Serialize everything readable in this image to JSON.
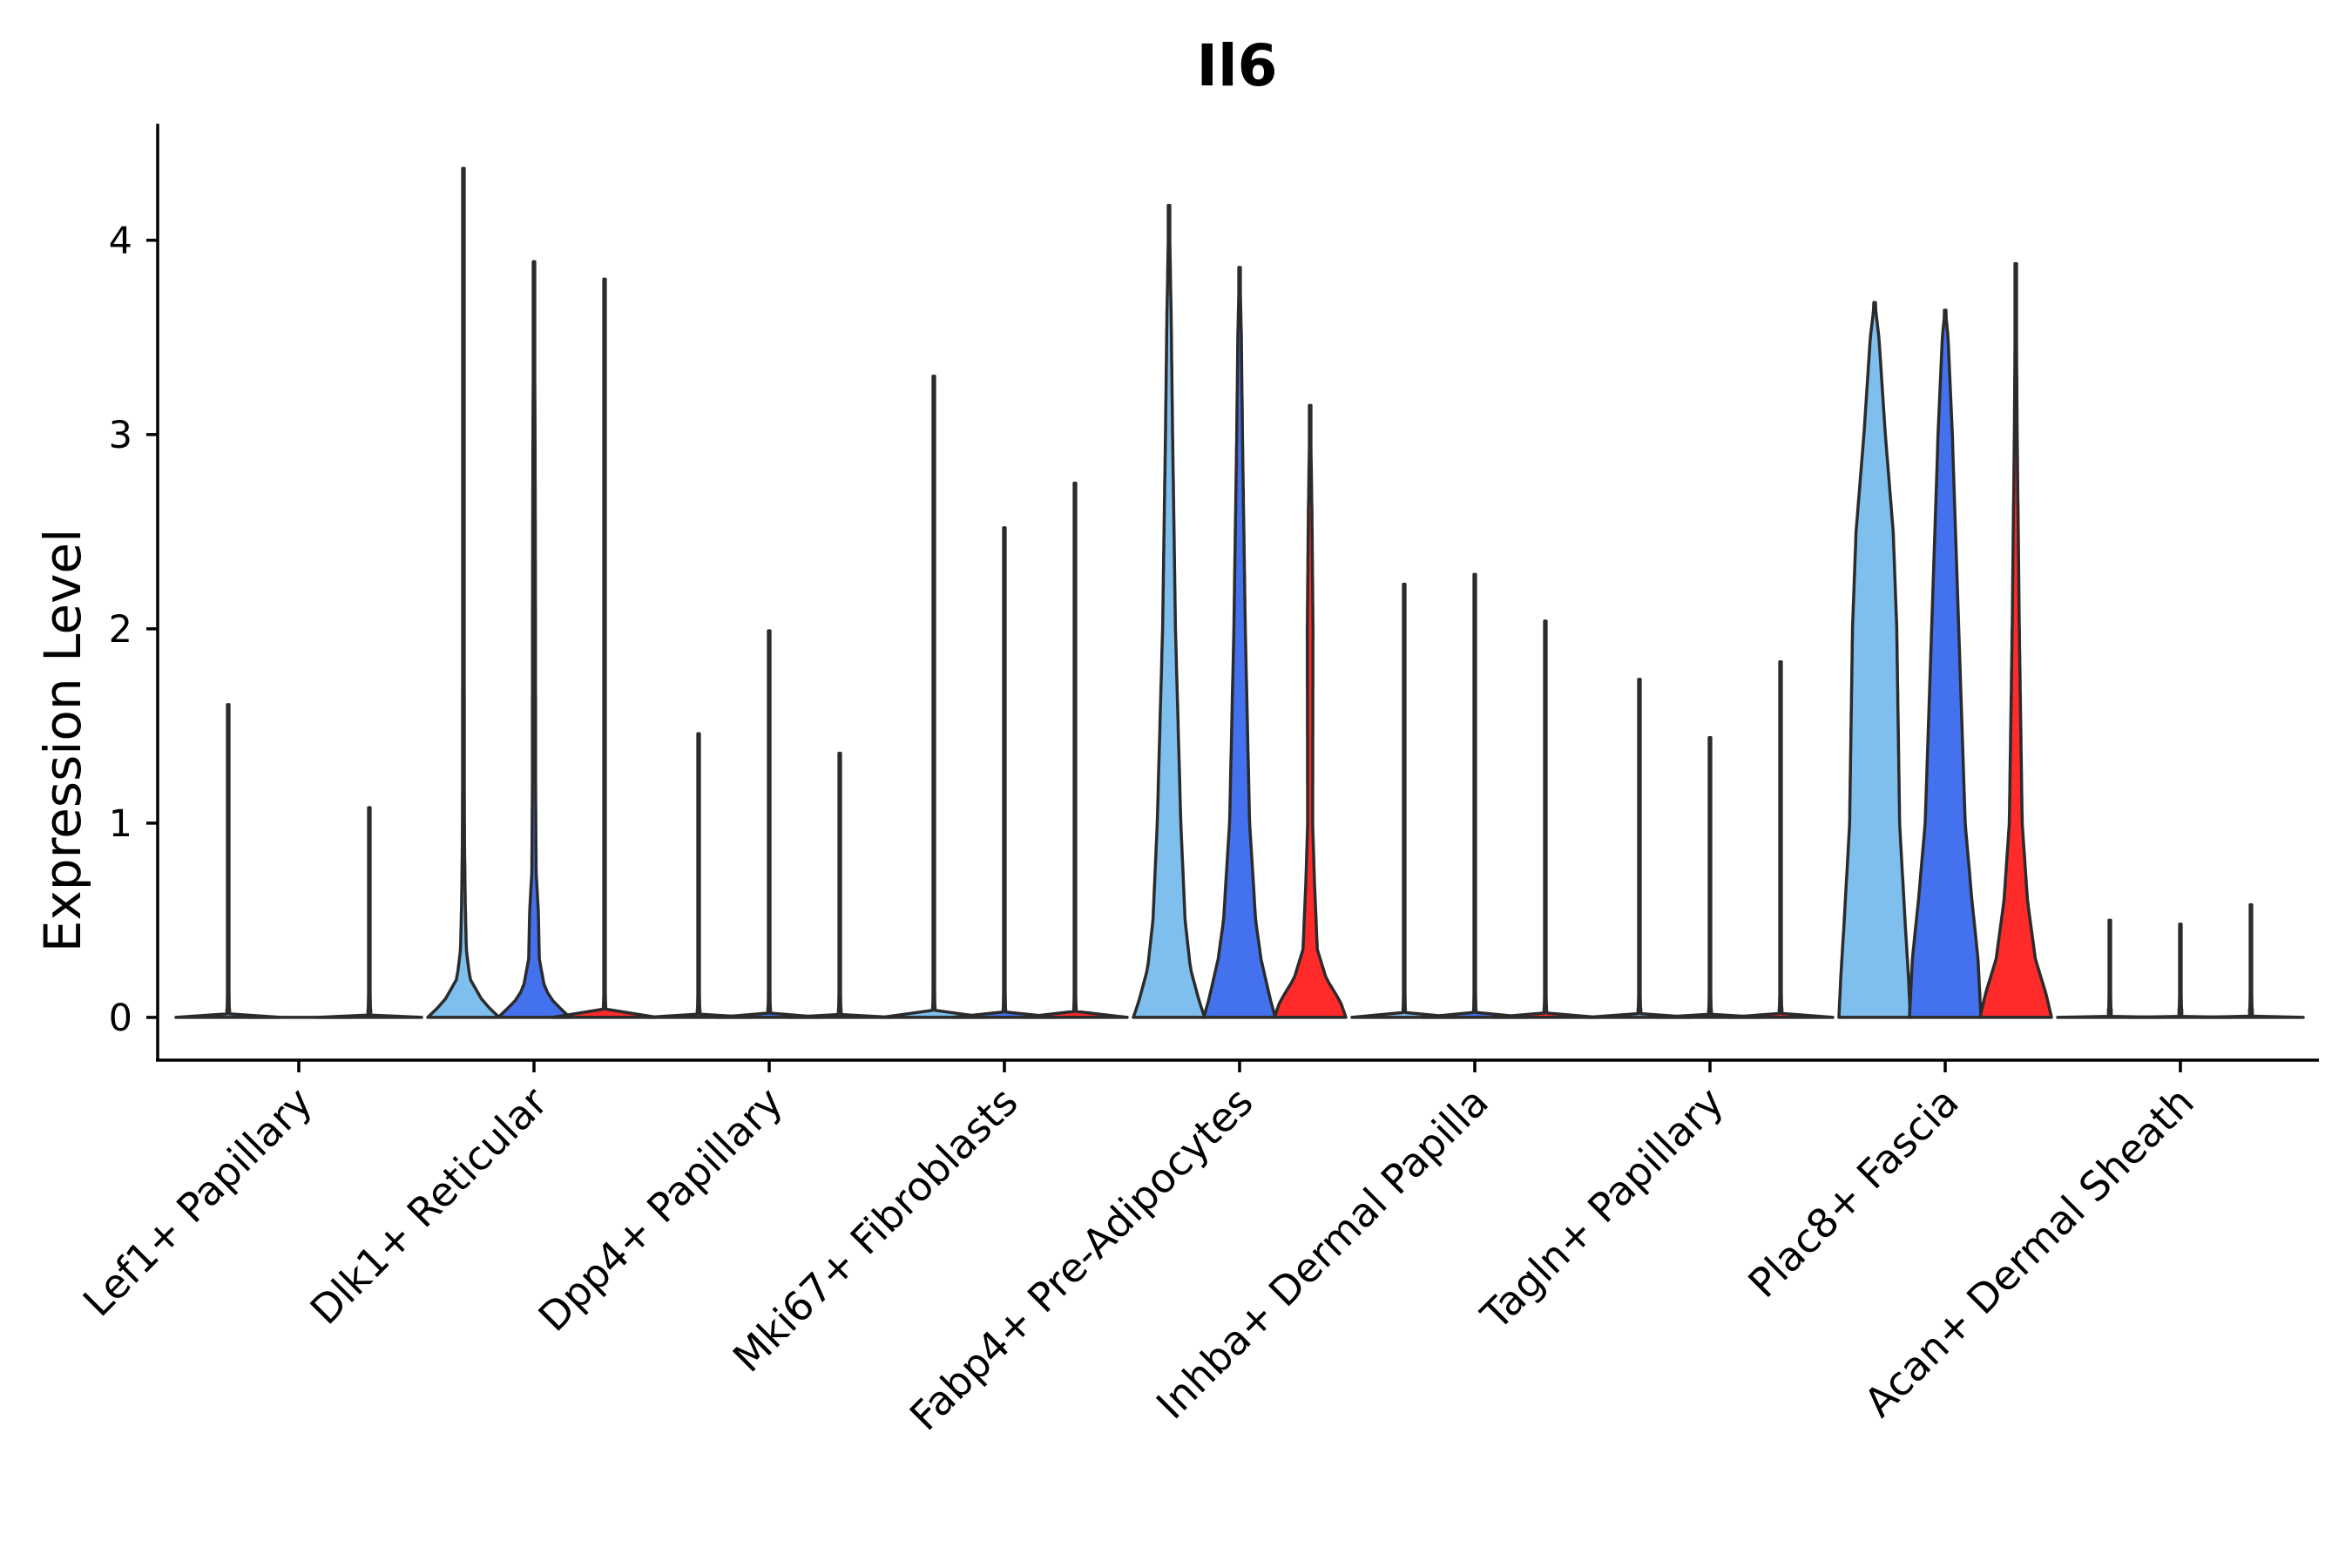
{
  "chart_data": {
    "type": "violin",
    "title": "Il6",
    "xlabel": "",
    "ylabel": "Expression Level",
    "ylim": [
      -0.22,
      4.6
    ],
    "yticks": [
      0,
      1,
      2,
      3,
      4
    ],
    "categories": [
      "Lef1+ Papillary",
      "Dlk1+ Reticular",
      "Dpp4+ Papillary",
      "Mki67+ Fibroblasts",
      "Fabp4+ Pre-Adipocytes",
      "Inhba+ Dermal Papilla",
      "Tagln+ Papillary",
      "Plac8+ Fascia",
      "Acan+ Dermal Sheath"
    ],
    "series_colors": [
      "#7fbfee",
      "#4471ee",
      "#ff2a2a"
    ],
    "violins": [
      {
        "category": 0,
        "series": 0,
        "max": 1.61,
        "fill": false,
        "shape": "flat"
      },
      {
        "category": 0,
        "series": 1,
        "max": 0.0,
        "fill": false,
        "shape": "flat"
      },
      {
        "category": 0,
        "series": 2,
        "max": 1.08,
        "fill": false,
        "shape": "flat"
      },
      {
        "category": 1,
        "series": 0,
        "max": 4.37,
        "fill": true,
        "shape": "dlk1_a"
      },
      {
        "category": 1,
        "series": 1,
        "max": 3.89,
        "fill": true,
        "shape": "dlk1_b"
      },
      {
        "category": 1,
        "series": 2,
        "max": 3.8,
        "fill": false,
        "shape": "flat"
      },
      {
        "category": 2,
        "series": 0,
        "max": 1.46,
        "fill": false,
        "shape": "flat"
      },
      {
        "category": 2,
        "series": 1,
        "max": 1.99,
        "fill": false,
        "shape": "flat"
      },
      {
        "category": 2,
        "series": 2,
        "max": 1.36,
        "fill": false,
        "shape": "flat"
      },
      {
        "category": 3,
        "series": 0,
        "max": 3.3,
        "fill": false,
        "shape": "flat"
      },
      {
        "category": 3,
        "series": 1,
        "max": 2.52,
        "fill": false,
        "shape": "flat"
      },
      {
        "category": 3,
        "series": 2,
        "max": 2.75,
        "fill": false,
        "shape": "flat"
      },
      {
        "category": 4,
        "series": 0,
        "max": 4.18,
        "fill": true,
        "shape": "fabp4_a"
      },
      {
        "category": 4,
        "series": 1,
        "max": 3.86,
        "fill": true,
        "shape": "fabp4_b"
      },
      {
        "category": 4,
        "series": 2,
        "max": 3.15,
        "fill": true,
        "shape": "fabp4_c"
      },
      {
        "category": 5,
        "series": 0,
        "max": 2.23,
        "fill": false,
        "shape": "flat"
      },
      {
        "category": 5,
        "series": 1,
        "max": 2.28,
        "fill": false,
        "shape": "flat"
      },
      {
        "category": 5,
        "series": 2,
        "max": 2.04,
        "fill": false,
        "shape": "flat"
      },
      {
        "category": 6,
        "series": 0,
        "max": 1.74,
        "fill": false,
        "shape": "flat"
      },
      {
        "category": 6,
        "series": 1,
        "max": 1.44,
        "fill": false,
        "shape": "flat"
      },
      {
        "category": 6,
        "series": 2,
        "max": 1.83,
        "fill": false,
        "shape": "flat"
      },
      {
        "category": 7,
        "series": 0,
        "max": 3.68,
        "fill": true,
        "shape": "plac8_a"
      },
      {
        "category": 7,
        "series": 1,
        "max": 3.64,
        "fill": true,
        "shape": "plac8_b"
      },
      {
        "category": 7,
        "series": 2,
        "max": 3.88,
        "fill": true,
        "shape": "plac8_c"
      },
      {
        "category": 8,
        "series": 0,
        "max": 0.5,
        "fill": false,
        "shape": "flat"
      },
      {
        "category": 8,
        "series": 1,
        "max": 0.48,
        "fill": false,
        "shape": "flat"
      },
      {
        "category": 8,
        "series": 2,
        "max": 0.58,
        "fill": false,
        "shape": "flat"
      }
    ],
    "violin_profiles": {
      "flat": [
        [
          0,
          1
        ],
        [
          0.01,
          0.05
        ],
        [
          0.05,
          0.02
        ],
        [
          0.2,
          0.01
        ],
        [
          1,
          0.01
        ]
      ],
      "dlk1_a": [
        [
          0,
          1
        ],
        [
          0.08,
          0.55
        ],
        [
          0.2,
          0.18
        ],
        [
          0.35,
          0.08
        ],
        [
          0.6,
          0.05
        ],
        [
          0.9,
          0.03
        ],
        [
          1.2,
          0.025
        ],
        [
          3.0,
          0.018
        ],
        [
          4.37,
          0.005
        ]
      ],
      "dlk1_b": [
        [
          0,
          1
        ],
        [
          0.08,
          0.55
        ],
        [
          0.15,
          0.3
        ],
        [
          0.3,
          0.15
        ],
        [
          0.55,
          0.12
        ],
        [
          0.75,
          0.06
        ],
        [
          1.2,
          0.045
        ],
        [
          2.2,
          0.04
        ],
        [
          3.0,
          0.03
        ],
        [
          3.89,
          0.005
        ]
      ],
      "fabp4_a": [
        [
          0,
          1
        ],
        [
          0.08,
          0.85
        ],
        [
          0.25,
          0.6
        ],
        [
          0.5,
          0.45
        ],
        [
          1.0,
          0.33
        ],
        [
          2.0,
          0.18
        ],
        [
          3.0,
          0.1
        ],
        [
          3.6,
          0.06
        ],
        [
          4.18,
          0.005
        ]
      ],
      "fabp4_b": [
        [
          0,
          1
        ],
        [
          0.1,
          0.85
        ],
        [
          0.3,
          0.6
        ],
        [
          0.5,
          0.45
        ],
        [
          1.0,
          0.28
        ],
        [
          2.0,
          0.16
        ],
        [
          3.0,
          0.08
        ],
        [
          3.5,
          0.05
        ],
        [
          3.86,
          0.005
        ]
      ],
      "fabp4_c": [
        [
          0,
          1
        ],
        [
          0.08,
          0.85
        ],
        [
          0.2,
          0.45
        ],
        [
          0.35,
          0.2
        ],
        [
          0.7,
          0.12
        ],
        [
          1.0,
          0.07
        ],
        [
          2.0,
          0.08
        ],
        [
          2.6,
          0.05
        ],
        [
          3.15,
          0.005
        ]
      ],
      "plac8_a": [
        [
          0,
          1
        ],
        [
          0.2,
          0.95
        ],
        [
          0.5,
          0.85
        ],
        [
          1.0,
          0.7
        ],
        [
          2.0,
          0.62
        ],
        [
          2.5,
          0.52
        ],
        [
          3.0,
          0.3
        ],
        [
          3.5,
          0.12
        ],
        [
          3.68,
          0.005
        ]
      ],
      "plac8_b": [
        [
          0,
          1
        ],
        [
          0.3,
          0.92
        ],
        [
          0.6,
          0.75
        ],
        [
          1.0,
          0.56
        ],
        [
          2.0,
          0.38
        ],
        [
          3.0,
          0.2
        ],
        [
          3.5,
          0.08
        ],
        [
          3.64,
          0.005
        ]
      ],
      "plac8_c": [
        [
          0,
          1
        ],
        [
          0.12,
          0.85
        ],
        [
          0.3,
          0.55
        ],
        [
          0.6,
          0.33
        ],
        [
          1.0,
          0.18
        ],
        [
          2.0,
          0.1
        ],
        [
          3.0,
          0.04
        ],
        [
          3.88,
          0.005
        ]
      ]
    }
  }
}
